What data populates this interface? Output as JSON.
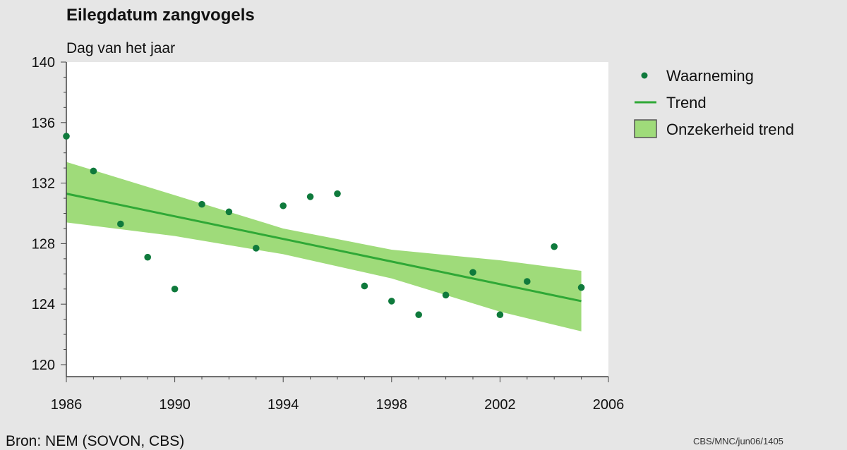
{
  "source": "Bron: NEM (SOVON, CBS)",
  "code": "CBS/MNC/jun06/1405",
  "colors": {
    "point": "#0f7a3c",
    "trend": "#2fa836",
    "band": "#9fdb7a",
    "plot_bg": "#ffffff",
    "page_bg": "#e6e6e6"
  },
  "legend": [
    {
      "label": "Waarneming",
      "icon": "dot-marker-icon"
    },
    {
      "label": "Trend",
      "icon": "line-marker-icon"
    },
    {
      "label": "Onzekerheid trend",
      "icon": "band-swatch-icon"
    }
  ],
  "chart_data": {
    "type": "scatter",
    "title": "Eilegdatum zangvogels",
    "xlabel": "",
    "ylabel": "Dag van het jaar",
    "xlim": [
      1986,
      2006
    ],
    "ylim": [
      120,
      140
    ],
    "xticks": [
      1986,
      1990,
      1994,
      1998,
      2002,
      2006
    ],
    "yticks": [
      120,
      124,
      128,
      132,
      136,
      140
    ],
    "grid": false,
    "legend_position": "right",
    "series": [
      {
        "name": "Waarneming",
        "type": "scatter",
        "x": [
          1986,
          1987,
          1988,
          1989,
          1990,
          1991,
          1992,
          1993,
          1994,
          1995,
          1996,
          1997,
          1998,
          1999,
          2000,
          2001,
          2002,
          2003,
          2004,
          2005
        ],
        "y": [
          135.1,
          132.8,
          129.3,
          127.1,
          125.0,
          130.6,
          130.1,
          127.7,
          130.5,
          131.1,
          131.3,
          125.2,
          124.2,
          123.3,
          124.6,
          126.1,
          123.3,
          125.5,
          127.8,
          125.1
        ]
      },
      {
        "name": "Trend",
        "type": "line",
        "x": [
          1986,
          2005
        ],
        "y": [
          131.3,
          124.2
        ]
      },
      {
        "name": "Onzekerheid trend",
        "type": "area",
        "x": [
          1986,
          1990,
          1994,
          1998,
          2002,
          2005
        ],
        "lower": [
          129.4,
          128.5,
          127.3,
          125.7,
          123.5,
          122.2
        ],
        "upper": [
          133.4,
          131.2,
          129.0,
          127.6,
          126.9,
          126.2
        ]
      }
    ]
  }
}
